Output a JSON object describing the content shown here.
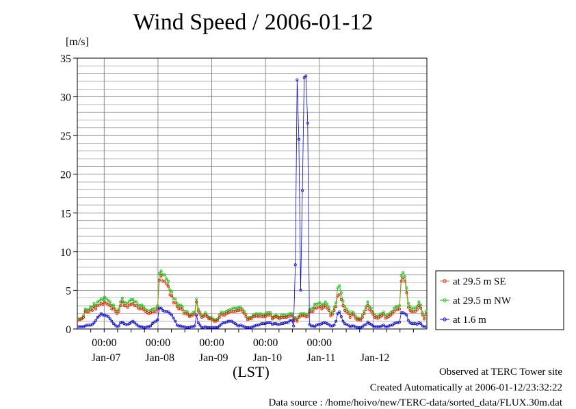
{
  "title": "Wind Speed / 2006-01-12",
  "y_unit": "[m/s]",
  "x_axis_label": "(LST)",
  "footer": {
    "observed": "Observed at TERC Tower site",
    "created": "Created Automatically at 2006-01-12/23:32:22",
    "source": "Data source : /home/hoivo/new/TERC-data/sorted_data/FLUX.30m.dat"
  },
  "colors": {
    "se": "#ff0000",
    "nw": "#00cc00",
    "low": "#0000ff",
    "grid": "#808080",
    "se_line": "#cc8800"
  },
  "chart_data": {
    "type": "line",
    "title": "Wind Speed / 2006-01-12",
    "ylabel": "[m/s]",
    "xlabel": "(LST)",
    "ylim": [
      0,
      35
    ],
    "y_ticks": [
      "0",
      "5",
      "10",
      "15",
      "20",
      "25",
      "30",
      "35"
    ],
    "x_range_days": [
      "2006-01-06T12:00",
      "2006-01-12T24:00"
    ],
    "x_tick_labels": [
      "00:00",
      "00:00",
      "00:00",
      "00:00",
      "00:00"
    ],
    "x_date_labels": [
      "Jan-07",
      "Jan-08",
      "Jan-09",
      "Jan-10",
      "Jan-11",
      "Jan-12"
    ],
    "grid": true,
    "legend_position": "right",
    "series": [
      {
        "name": "at 29.5 m SE",
        "values": [
          1.2,
          1.2,
          1.3,
          1.5,
          2.3,
          2.2,
          2.2,
          2.5,
          2.4,
          2.9,
          2.6,
          3.0,
          3.1,
          3.3,
          3.2,
          3.5,
          3.3,
          3.2,
          3.0,
          2.6,
          2.7,
          2.3,
          2.0,
          2.3,
          3.0,
          3.5,
          3.0,
          3.0,
          2.8,
          3.1,
          3.2,
          3.3,
          3.0,
          3.0,
          2.7,
          2.6,
          2.7,
          2.5,
          2.3,
          2.1,
          2.0,
          2.1,
          2.2,
          2.2,
          2.3,
          2.6,
          6.3,
          6.9,
          6.2,
          6.2,
          5.8,
          5.5,
          4.4,
          4.3,
          3.4,
          3.4,
          2.9,
          2.6,
          2.7,
          2.5,
          2.0,
          2.0,
          1.9,
          1.6,
          1.7,
          1.8,
          1.9,
          3.5,
          2.3,
          1.9,
          1.5,
          1.6,
          1.8,
          1.6,
          1.3,
          1.3,
          1.2,
          1.0,
          1.0,
          1.1,
          1.5,
          1.9,
          1.8,
          1.8,
          2.0,
          2.1,
          2.2,
          2.3,
          2.3,
          2.3,
          2.4,
          2.4,
          2.5,
          2.3,
          2.0,
          1.6,
          1.2,
          1.3,
          1.3,
          1.6,
          1.6,
          1.7,
          1.6,
          1.7,
          1.6,
          1.6,
          1.6,
          1.8,
          1.8,
          1.8,
          1.3,
          1.5,
          1.6,
          1.5,
          1.3,
          1.5,
          1.5,
          1.5,
          1.5,
          1.6,
          1.7,
          1.7,
          1.0,
          1.3,
          1.0,
          1.5,
          1.7,
          1.7,
          1.7,
          1.6,
          1.6,
          2.2,
          2.2,
          2.3,
          2.7,
          2.7,
          2.8,
          2.9,
          2.6,
          2.8,
          3.0,
          2.7,
          2.4,
          1.7,
          1.9,
          2.4,
          2.9,
          4.3,
          4.5,
          3.8,
          3.0,
          2.4,
          2.2,
          2.0,
          1.5,
          1.9,
          1.8,
          1.4,
          1.2,
          1.2,
          1.1,
          1.5,
          2.0,
          2.5,
          3.0,
          2.5,
          2.3,
          1.9,
          1.5,
          1.4,
          1.4,
          1.6,
          1.7,
          1.9,
          1.4,
          1.5,
          1.6,
          1.8,
          2.0,
          2.3,
          2.5,
          2.5,
          2.6,
          6.2,
          6.6,
          6.2,
          4.7,
          2.8,
          2.4,
          2.2,
          2.3,
          2.3,
          2.5,
          3.0,
          2.7,
          1.8,
          1.3,
          1.9
        ]
      },
      {
        "name": "at 29.5 m NW",
        "values": [
          1.3,
          1.3,
          1.4,
          1.7,
          2.6,
          2.5,
          2.5,
          2.9,
          2.8,
          3.3,
          3.0,
          3.5,
          3.6,
          3.9,
          3.8,
          4.1,
          3.9,
          3.7,
          3.5,
          3.0,
          3.1,
          2.6,
          2.3,
          2.6,
          3.5,
          4.0,
          3.4,
          3.4,
          3.3,
          3.6,
          3.8,
          3.8,
          3.5,
          3.5,
          3.1,
          3.0,
          3.1,
          2.9,
          2.6,
          2.4,
          2.3,
          2.4,
          2.6,
          2.6,
          2.7,
          3.0,
          7.2,
          7.5,
          7.0,
          7.0,
          6.5,
          6.2,
          5.0,
          4.8,
          3.9,
          3.9,
          3.3,
          3.0,
          3.1,
          2.9,
          2.3,
          2.3,
          2.2,
          1.8,
          1.9,
          2.1,
          2.2,
          3.9,
          2.6,
          2.2,
          1.7,
          1.8,
          2.1,
          1.8,
          1.5,
          1.5,
          1.4,
          1.2,
          1.2,
          1.3,
          1.8,
          2.2,
          2.1,
          2.1,
          2.3,
          2.4,
          2.5,
          2.6,
          2.7,
          2.7,
          2.7,
          2.8,
          2.8,
          2.6,
          2.3,
          1.9,
          1.4,
          1.5,
          1.5,
          1.8,
          1.9,
          2.0,
          1.9,
          2.0,
          1.9,
          1.9,
          1.9,
          2.1,
          2.1,
          2.1,
          1.5,
          1.7,
          1.8,
          1.7,
          1.5,
          1.8,
          1.8,
          1.8,
          1.7,
          1.9,
          2.0,
          2.0,
          1.2,
          1.5,
          1.2,
          1.7,
          2.0,
          2.0,
          2.0,
          1.9,
          1.9,
          2.5,
          2.6,
          2.7,
          3.2,
          3.2,
          3.3,
          3.4,
          3.0,
          3.2,
          3.5,
          3.2,
          2.8,
          2.0,
          2.2,
          2.8,
          3.4,
          5.3,
          5.6,
          4.7,
          3.6,
          2.9,
          2.6,
          2.3,
          1.8,
          2.2,
          2.1,
          1.7,
          1.4,
          1.4,
          1.3,
          1.8,
          2.3,
          2.9,
          3.5,
          2.9,
          2.7,
          2.2,
          1.8,
          1.6,
          1.7,
          1.9,
          2.0,
          2.2,
          1.7,
          1.8,
          1.9,
          2.1,
          2.3,
          2.7,
          2.9,
          2.9,
          3.0,
          6.9,
          7.3,
          6.8,
          5.3,
          3.3,
          2.9,
          2.6,
          2.7,
          2.7,
          2.9,
          3.5,
          3.1,
          2.1,
          1.6,
          2.3
        ]
      },
      {
        "name": "at 1.6 m",
        "values": [
          0.3,
          0.3,
          0.3,
          0.3,
          0.4,
          0.5,
          0.5,
          0.5,
          0.6,
          0.8,
          1.1,
          1.5,
          1.7,
          2.0,
          1.8,
          1.8,
          1.7,
          1.6,
          1.3,
          1.0,
          0.7,
          0.5,
          0.3,
          0.4,
          0.8,
          0.9,
          0.7,
          0.6,
          0.6,
          0.7,
          0.9,
          1.0,
          0.8,
          0.6,
          0.4,
          0.3,
          0.3,
          0.2,
          0.2,
          0.3,
          0.3,
          0.4,
          0.7,
          0.9,
          1.0,
          1.2,
          2.7,
          2.7,
          2.4,
          2.3,
          2.3,
          2.2,
          2.0,
          1.8,
          1.4,
          1.0,
          0.5,
          0.4,
          0.4,
          0.3,
          0.3,
          0.2,
          0.2,
          0.2,
          0.3,
          0.3,
          0.4,
          1.8,
          0.8,
          0.5,
          0.2,
          0.2,
          0.3,
          0.2,
          0.2,
          0.2,
          0.2,
          0.2,
          0.2,
          0.2,
          0.4,
          0.6,
          0.8,
          0.8,
          0.9,
          1.0,
          1.0,
          1.0,
          0.8,
          0.7,
          0.5,
          0.4,
          0.5,
          0.4,
          0.3,
          0.2,
          0.2,
          0.2,
          0.2,
          0.3,
          0.4,
          0.5,
          0.5,
          0.6,
          0.7,
          0.7,
          0.7,
          0.8,
          0.8,
          0.8,
          0.6,
          0.7,
          0.7,
          0.6,
          0.6,
          0.7,
          0.7,
          0.8,
          0.8,
          0.9,
          1.1,
          1.1,
          0.4,
          8.3,
          32.2,
          24.5,
          5.0,
          17.9,
          32.5,
          32.7,
          26.6,
          0.6,
          0.4,
          0.4,
          0.3,
          0.5,
          0.6,
          0.6,
          0.7,
          0.8,
          0.8,
          0.7,
          0.6,
          0.4,
          0.4,
          0.5,
          1.0,
          2.0,
          2.2,
          1.6,
          1.0,
          0.7,
          0.6,
          0.5,
          0.3,
          0.4,
          0.4,
          0.3,
          0.2,
          0.2,
          0.2,
          0.3,
          0.5,
          0.6,
          0.9,
          0.7,
          0.6,
          0.4,
          0.3,
          0.3,
          0.3,
          0.3,
          0.4,
          0.5,
          0.3,
          0.3,
          0.4,
          0.5,
          0.5,
          0.7,
          0.8,
          0.8,
          0.9,
          2.1,
          2.1,
          2.0,
          1.8,
          1.1,
          0.8,
          0.7,
          0.7,
          0.7,
          0.6,
          0.8,
          0.7,
          0.4,
          0.3,
          0.3
        ]
      }
    ]
  }
}
